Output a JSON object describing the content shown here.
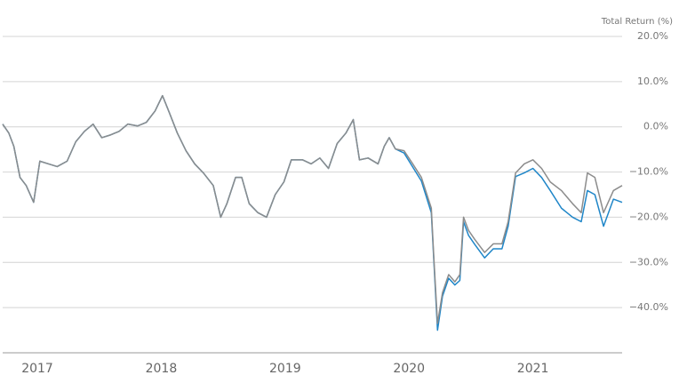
{
  "chart_data": {
    "type": "line",
    "y_axis_label": "Total Return (%)",
    "x": [
      2016.72,
      2016.77,
      2016.81,
      2016.86,
      2016.91,
      2016.97,
      2017.02,
      2017.09,
      2017.16,
      2017.24,
      2017.31,
      2017.38,
      2017.45,
      2017.52,
      2017.59,
      2017.66,
      2017.73,
      2017.81,
      2017.88,
      2017.95,
      2018.01,
      2018.06,
      2018.13,
      2018.2,
      2018.27,
      2018.34,
      2018.42,
      2018.48,
      2018.53,
      2018.6,
      2018.65,
      2018.71,
      2018.78,
      2018.85,
      2018.92,
      2018.99,
      2019.05,
      2019.14,
      2019.21,
      2019.28,
      2019.35,
      2019.42,
      2019.49,
      2019.55,
      2019.6,
      2019.67,
      2019.75,
      2019.8,
      2019.84,
      2019.89,
      2019.96,
      2020.03,
      2020.1,
      2020.18,
      2020.2,
      2020.23,
      2020.27,
      2020.32,
      2020.37,
      2020.41,
      2020.44,
      2020.48,
      2020.53,
      2020.61,
      2020.68,
      2020.75,
      2020.8,
      2020.86,
      2020.93,
      2021.0,
      2021.07,
      2021.14,
      2021.23,
      2021.32,
      2021.39,
      2021.44,
      2021.5,
      2021.57,
      2021.65,
      2021.72
    ],
    "series": [
      {
        "color": "#1f86c8",
        "values": [
          0.6,
          -1.4,
          -4.3,
          -11.2,
          -13,
          -16.7,
          -7.6,
          -8.2,
          -8.8,
          -7.6,
          -3.3,
          -1,
          0.6,
          -2.4,
          -1.8,
          -1,
          0.6,
          0.2,
          1,
          3.5,
          6.9,
          3.5,
          -1.4,
          -5.3,
          -8.2,
          -10.2,
          -13,
          -20,
          -17,
          -11.2,
          -11.2,
          -17,
          -19,
          -20,
          -15,
          -12.2,
          -7.3,
          -7.3,
          -8.2,
          -6.9,
          -9.2,
          -3.7,
          -1.4,
          1.6,
          -7.3,
          -6.9,
          -8.2,
          -4.3,
          -2.4,
          -4.9,
          -5.8,
          -8.9,
          -12,
          -19,
          -29.5,
          -45,
          -37.5,
          -33.5,
          -35,
          -34,
          -21,
          -24,
          -26,
          -29,
          -27,
          -27,
          -22,
          -11,
          -10.2,
          -9.2,
          -11.2,
          -14.1,
          -18,
          -20,
          -21,
          -14.1,
          -15,
          -22,
          -16,
          -16.7
        ]
      },
      {
        "color": "#8c8c8c",
        "values": [
          0.6,
          -1.4,
          -4.3,
          -11.2,
          -13,
          -16.7,
          -7.6,
          -8.2,
          -8.8,
          -7.6,
          -3.3,
          -1,
          0.6,
          -2.4,
          -1.8,
          -1,
          0.6,
          0.2,
          1,
          3.5,
          6.9,
          3.5,
          -1.4,
          -5.3,
          -8.2,
          -10.2,
          -13,
          -20,
          -17,
          -11.2,
          -11.2,
          -17,
          -19,
          -20,
          -15,
          -12.2,
          -7.3,
          -7.3,
          -8.2,
          -6.9,
          -9.2,
          -3.7,
          -1.4,
          1.6,
          -7.3,
          -6.9,
          -8.2,
          -4.3,
          -2.4,
          -4.9,
          -5.3,
          -8.2,
          -11.2,
          -18,
          -28.8,
          -43.5,
          -36.7,
          -32.7,
          -34.3,
          -32.7,
          -20,
          -22.9,
          -24.9,
          -27.8,
          -25.9,
          -25.9,
          -21,
          -10.2,
          -8.2,
          -7.3,
          -9.2,
          -12.2,
          -14.1,
          -17,
          -19,
          -10.2,
          -11.2,
          -19,
          -14.1,
          -13
        ]
      }
    ],
    "xlim": [
      2016.72,
      2021.72
    ],
    "xticks": [
      2017,
      2018,
      2019,
      2020,
      2021
    ],
    "ylim": [
      -50,
      20
    ],
    "yticks": [
      {
        "value": 20,
        "label": "20.0%"
      },
      {
        "value": 10,
        "label": "10.0%"
      },
      {
        "value": 0,
        "label": "0.0%"
      },
      {
        "value": -10,
        "label": "−10.0%"
      },
      {
        "value": -20,
        "label": "−20.0%"
      },
      {
        "value": -30,
        "label": "−30.0%"
      },
      {
        "value": -40,
        "label": "−40.0%"
      }
    ],
    "grid": true
  }
}
